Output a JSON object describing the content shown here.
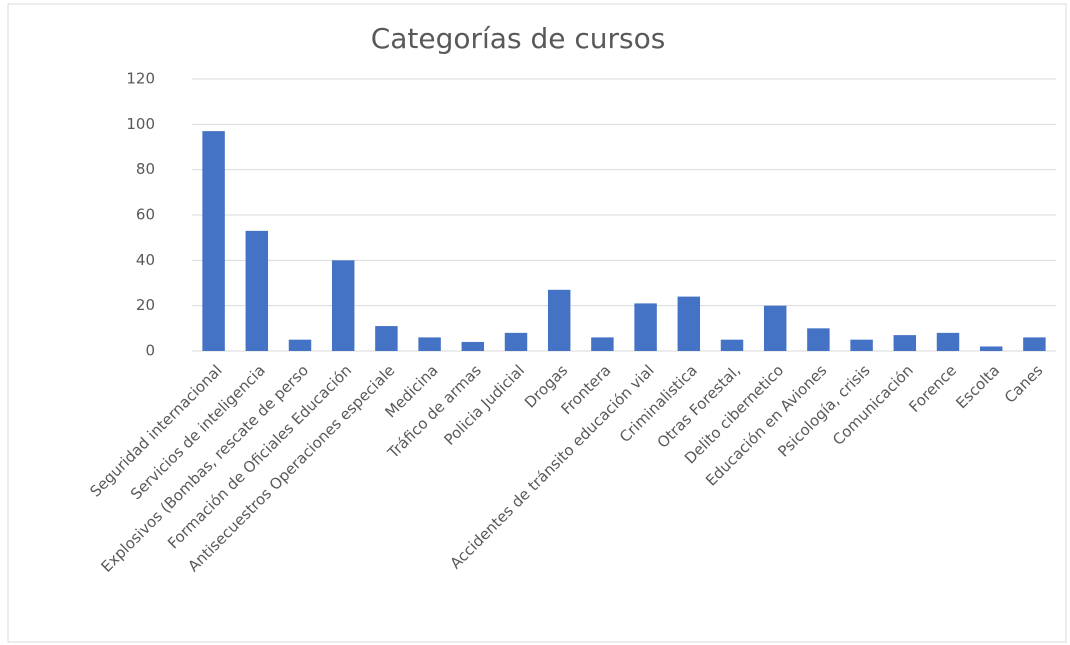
{
  "chart_data": {
    "type": "bar",
    "title": "Categorías de cursos",
    "categories": [
      "Seguridad internacional",
      "Servicios de inteligencia",
      "Explosivos (Bombas, rescate de perso",
      "Formación de Oficiales Educación",
      "Antisecuestros Operaciones especiale",
      "Medicina",
      "Tráfico de armas",
      "Policia Judicial",
      "Drogas",
      "Frontera",
      "Accidentes de tránsito educación vial",
      "Criminalistica",
      "Otras Forestal,",
      "Delito cibernetico",
      "Educación en Aviones",
      "Psicología, crisis",
      "Comunicación",
      "Forence",
      "Escolta",
      "Canes"
    ],
    "values": [
      97,
      53,
      5,
      40,
      11,
      6,
      4,
      8,
      27,
      6,
      21,
      24,
      5,
      20,
      10,
      5,
      7,
      8,
      2,
      6
    ],
    "color": "#4472c4",
    "ylim": [
      0,
      120
    ],
    "yticks": [
      0,
      20,
      40,
      60,
      80,
      100,
      120
    ],
    "grid": true
  }
}
